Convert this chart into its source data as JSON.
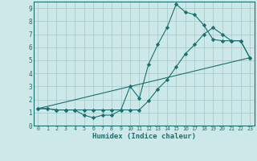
{
  "xlabel": "Humidex (Indice chaleur)",
  "bg_color": "#cce8e8",
  "grid_color": "#aacccc",
  "line_color": "#1a7070",
  "xlim": [
    -0.5,
    23.5
  ],
  "ylim": [
    0,
    9.5
  ],
  "xticks": [
    0,
    1,
    2,
    3,
    4,
    5,
    6,
    7,
    8,
    9,
    10,
    11,
    12,
    13,
    14,
    15,
    16,
    17,
    18,
    19,
    20,
    21,
    22,
    23
  ],
  "yticks": [
    0,
    1,
    2,
    3,
    4,
    5,
    6,
    7,
    8,
    9
  ],
  "series": [
    {
      "x": [
        0,
        1,
        2,
        3,
        4,
        5,
        6,
        7,
        8,
        9,
        10,
        11,
        12,
        13,
        14,
        15,
        16,
        17,
        18,
        19,
        20,
        21,
        22,
        23
      ],
      "y": [
        1.3,
        1.3,
        1.2,
        1.2,
        1.2,
        0.8,
        0.6,
        0.8,
        0.8,
        1.2,
        3.0,
        2.1,
        4.7,
        6.2,
        7.5,
        9.3,
        8.7,
        8.5,
        7.7,
        6.6,
        6.5,
        6.5,
        6.5,
        5.2
      ],
      "marker": true
    },
    {
      "x": [
        0,
        1,
        2,
        3,
        4,
        5,
        6,
        7,
        8,
        9,
        10,
        11,
        12,
        13,
        14,
        15,
        16,
        17,
        18,
        19,
        20,
        21,
        22,
        23
      ],
      "y": [
        1.3,
        1.3,
        1.2,
        1.2,
        1.2,
        1.2,
        1.2,
        1.2,
        1.2,
        1.2,
        1.2,
        1.2,
        1.9,
        2.8,
        3.5,
        4.5,
        5.5,
        6.2,
        7.0,
        7.5,
        7.0,
        6.5,
        6.5,
        5.2
      ],
      "marker": true
    },
    {
      "x": [
        0,
        23
      ],
      "y": [
        1.3,
        5.2
      ],
      "marker": false
    }
  ]
}
